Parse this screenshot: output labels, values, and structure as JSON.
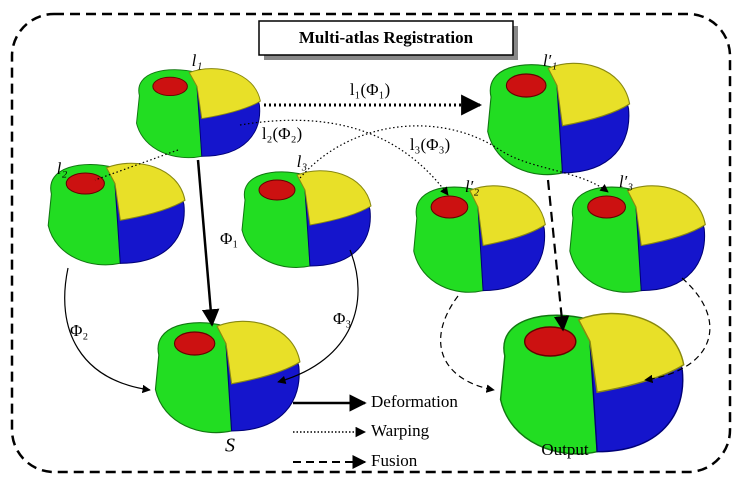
{
  "title": "Multi-atlas Registration",
  "atlases": [
    {
      "label": "l₁",
      "warped_label": "l′₁",
      "warp": "l₁(Φ₁)",
      "deform": "Φ₁"
    },
    {
      "label": "l₂",
      "warped_label": "l′₂",
      "warp": "l₂(Φ₂)",
      "deform": "Φ₂"
    },
    {
      "label": "l₃",
      "warped_label": "l′₃",
      "warp": "l₃(Φ₃)",
      "deform": "Φ₃"
    }
  ],
  "target": "S",
  "output": "Output",
  "legend": [
    "Deformation",
    "Warping",
    "Fusion"
  ]
}
